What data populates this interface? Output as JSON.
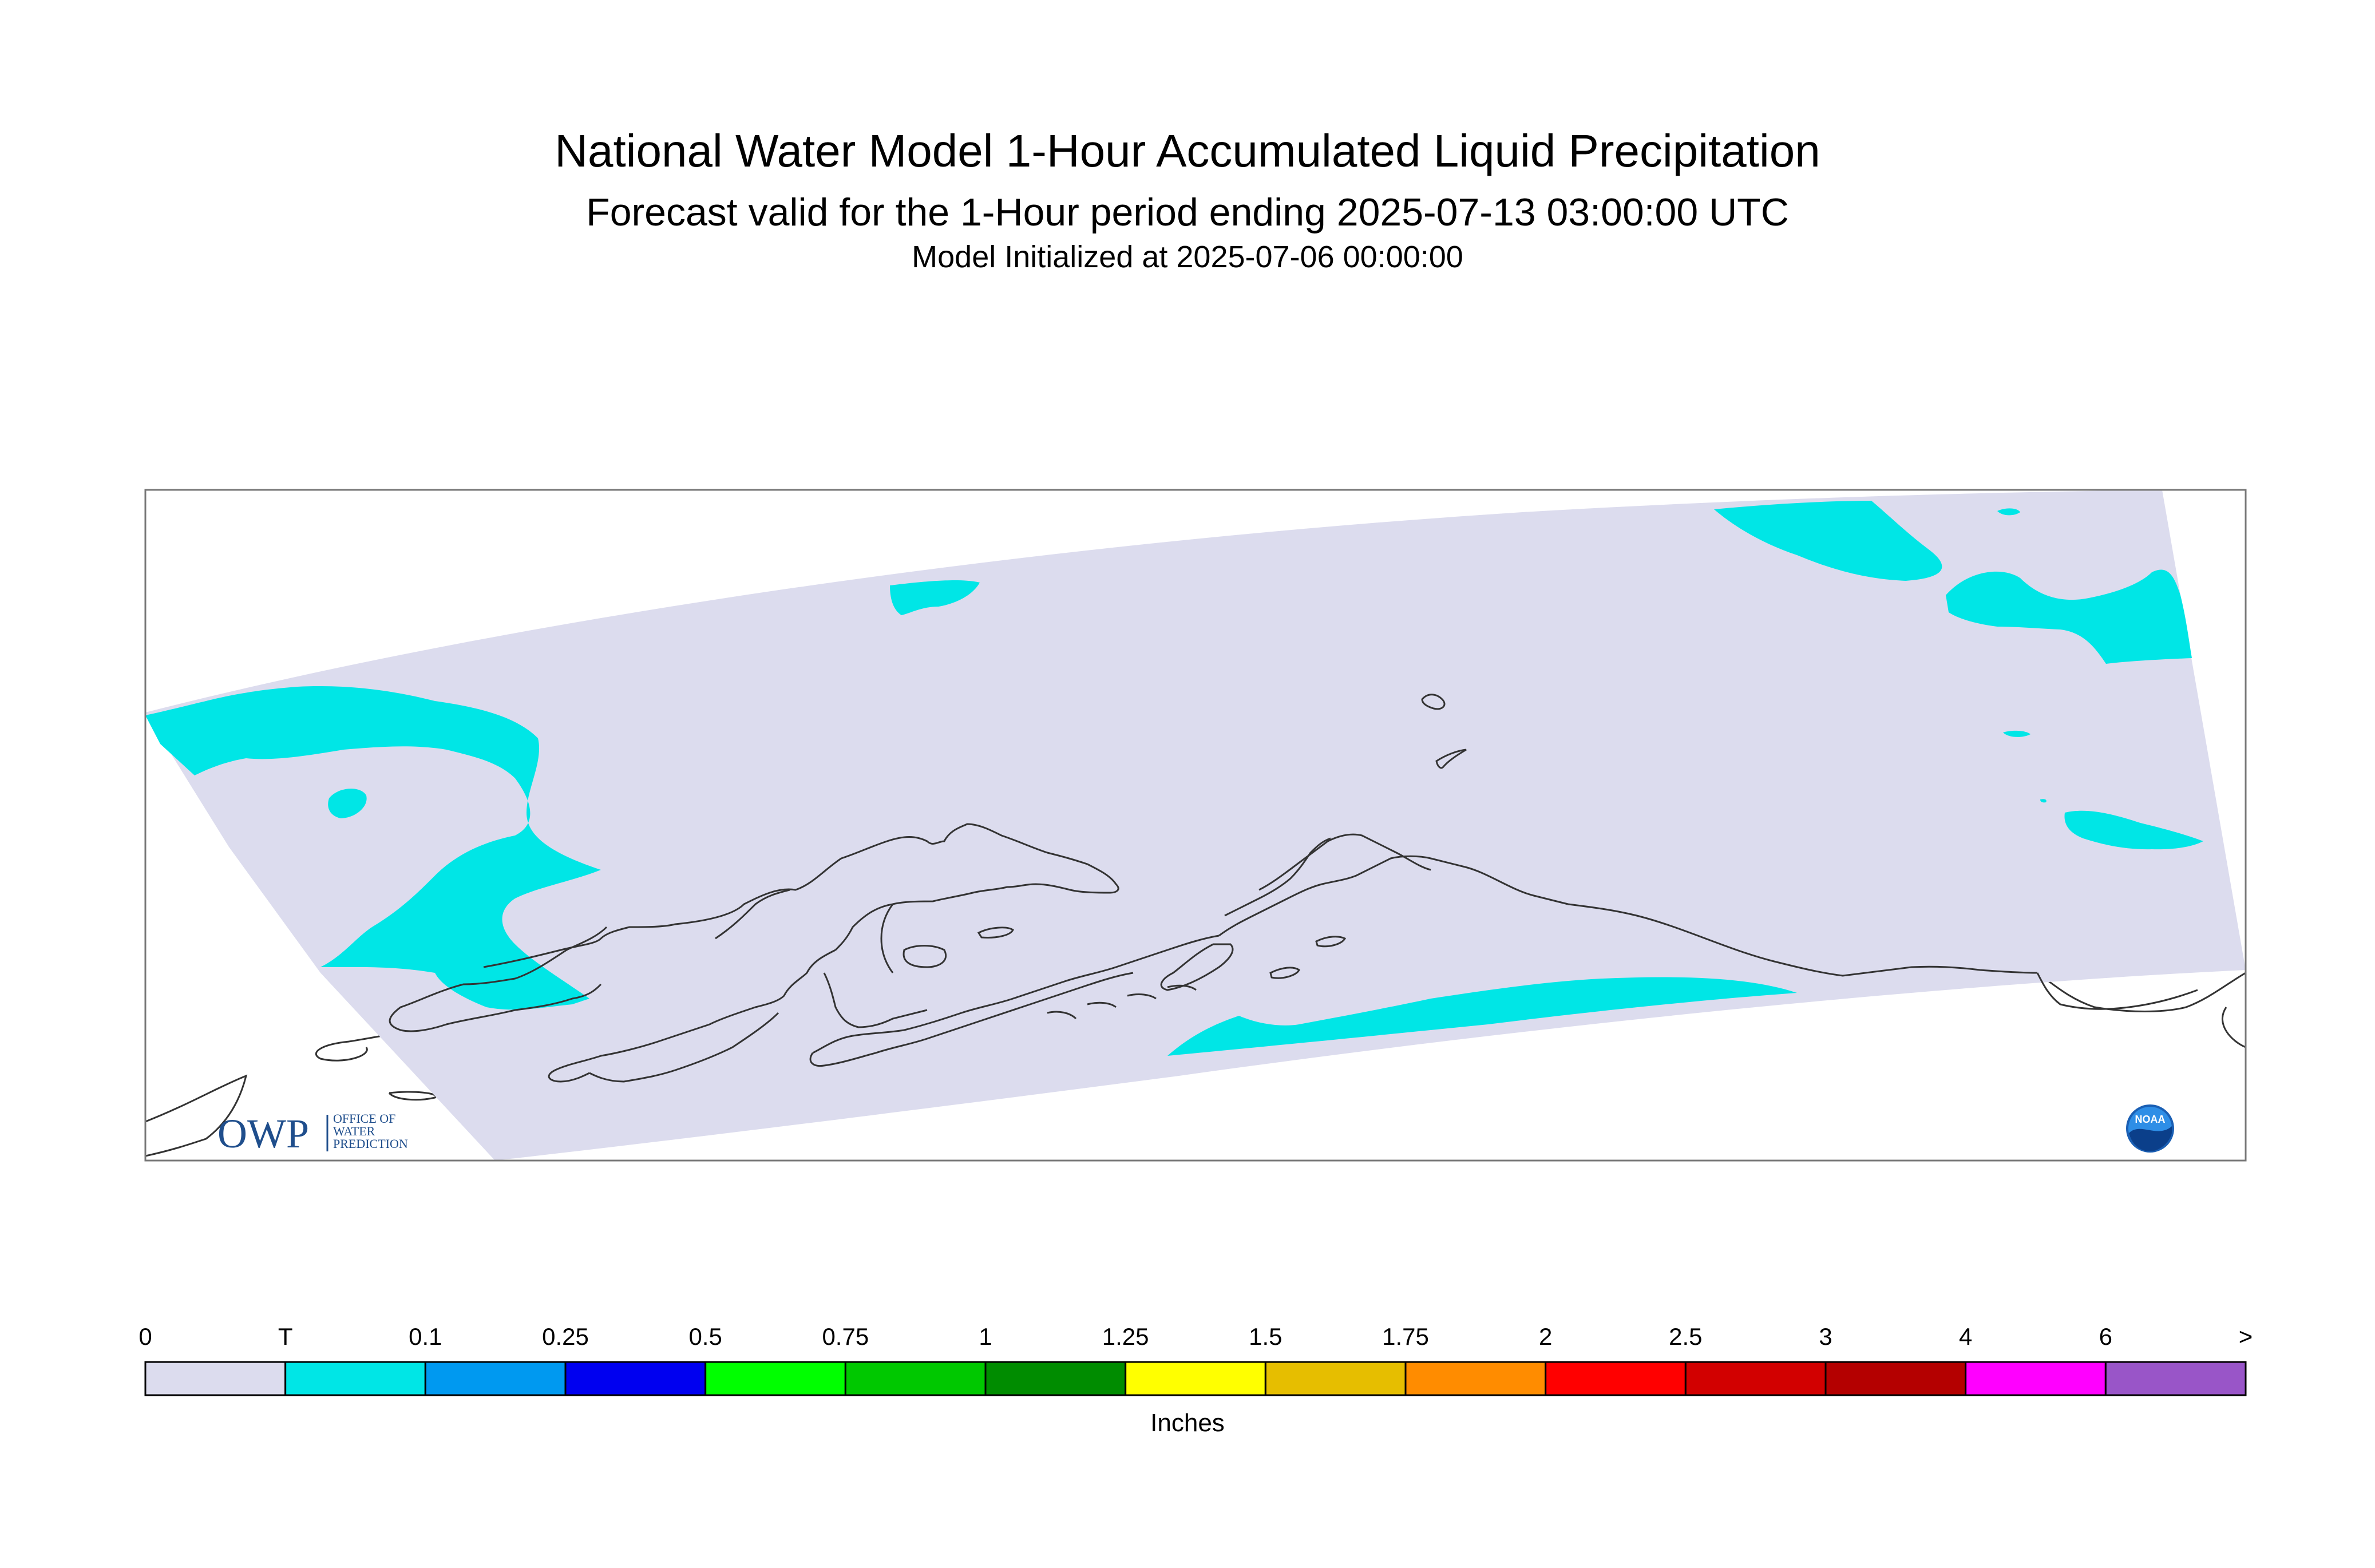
{
  "header": {
    "title": "National Water Model 1-Hour Accumulated Liquid Precipitation",
    "subtitle": "Forecast valid for the 1-Hour period ending 2025-07-13 03:00:00 UTC",
    "initialized": "Model Initialized at 2025-07-06 00:00:00"
  },
  "logos": {
    "owp": {
      "letters": "OWP",
      "line1": "OFFICE OF",
      "line2": "WATER",
      "line3": "PREDICTION"
    },
    "noaa": {
      "text": "NOAA"
    }
  },
  "colors": {
    "zero": "#dcdcee",
    "trace": "#00e6e6",
    "coast": "#333333"
  },
  "legend": {
    "units": "Inches",
    "labels": [
      "0",
      "T",
      "0.1",
      "0.25",
      "0.5",
      "0.75",
      "1",
      "1.25",
      "1.5",
      "1.75",
      "2",
      "2.5",
      "3",
      "4",
      "6",
      ">"
    ],
    "colors": [
      "#dcdcee",
      "#00e6e6",
      "#0099f0",
      "#0000f0",
      "#00ff00",
      "#00c800",
      "#008c00",
      "#ffff00",
      "#e6be00",
      "#ff8c00",
      "#ff0000",
      "#d20000",
      "#b40000",
      "#ff00ff",
      "#9955c8"
    ]
  }
}
